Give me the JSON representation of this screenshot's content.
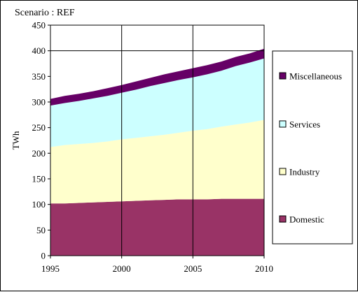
{
  "chart_data": {
    "type": "area",
    "stacked": true,
    "title": "Scenario : REF",
    "xlabel": "",
    "ylabel": "TWh",
    "x": [
      1995,
      1996,
      1997,
      1998,
      1999,
      2000,
      2001,
      2002,
      2003,
      2004,
      2005,
      2006,
      2007,
      2008,
      2009,
      2010
    ],
    "xticks": [
      1995,
      2000,
      2005,
      2010
    ],
    "ylim": [
      0,
      450
    ],
    "yticks": [
      0,
      50,
      100,
      150,
      200,
      250,
      300,
      350,
      400,
      450
    ],
    "grid": "major gridlines at x = 2000, 2005 and y = 400",
    "legend_position": "right",
    "series": [
      {
        "name": "Domestic",
        "color": "#993366",
        "values": [
          102,
          102,
          103,
          104,
          105,
          106,
          107,
          108,
          109,
          110,
          110,
          110,
          111,
          111,
          111,
          111
        ]
      },
      {
        "name": "Industry",
        "color": "#ffffcc",
        "values": [
          110,
          114,
          115,
          116,
          118,
          121,
          123,
          125,
          127,
          130,
          134,
          137,
          141,
          145,
          149,
          154
        ]
      },
      {
        "name": "Services",
        "color": "#ccffff",
        "values": [
          81,
          82,
          84,
          87,
          89,
          91,
          94,
          98,
          101,
          103,
          104,
          107,
          109,
          114,
          117,
          120
        ]
      },
      {
        "name": "Miscellaneous",
        "color": "#660066",
        "values": [
          13,
          14,
          14,
          14,
          15,
          15,
          16,
          16,
          17,
          17,
          18,
          18,
          18,
          18,
          18,
          19
        ]
      }
    ],
    "legend_order": [
      "Miscellaneous",
      "Services",
      "Industry",
      "Domestic"
    ]
  }
}
